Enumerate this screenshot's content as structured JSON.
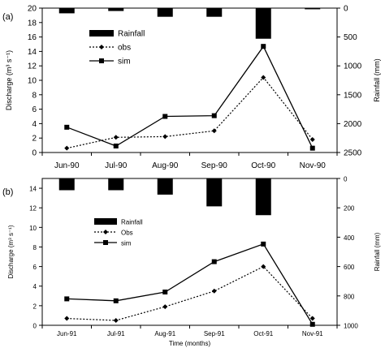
{
  "chart_data": [
    {
      "type": "line",
      "panel_label": "(a)",
      "categories": [
        "Jun-90",
        "Jul-90",
        "Aug-90",
        "Sep-90",
        "Oct-90",
        "Nov-90"
      ],
      "ylabel": "Discharge (m³ s⁻¹)",
      "y2label": "Rainfall (mm)",
      "ylim": [
        0,
        20
      ],
      "yticks": [
        0,
        2,
        4,
        6,
        8,
        10,
        12,
        14,
        16,
        18,
        20
      ],
      "y2lim": [
        0,
        2500
      ],
      "y2ticks": [
        0,
        500,
        1000,
        1500,
        2000,
        2500
      ],
      "y2_inverted": true,
      "series": [
        {
          "name": "obs",
          "kind": "line",
          "style": "dotted",
          "marker": "diamond",
          "values": [
            0.6,
            2.1,
            2.2,
            3.0,
            10.4,
            1.8
          ]
        },
        {
          "name": "sim",
          "kind": "line",
          "style": "solid",
          "marker": "square",
          "values": [
            3.5,
            0.9,
            5.0,
            5.1,
            14.7,
            0.6
          ]
        },
        {
          "name": "Rainfall",
          "kind": "bar",
          "axis": "right",
          "values": [
            90,
            50,
            150,
            150,
            530,
            20
          ]
        }
      ],
      "legend": {
        "placement": "top-left",
        "items": [
          "Rainfall",
          "obs",
          "sim"
        ]
      },
      "grid": false
    },
    {
      "type": "line",
      "panel_label": "(b)",
      "categories": [
        "Jun-91",
        "Jul-91",
        "Aug-91",
        "Sep-91",
        "Oct-91",
        "Nov-91"
      ],
      "xlabel": "Time (months)",
      "ylabel": "Discharge (m³ s⁻¹)",
      "y2label": "Rainfall (mm)",
      "ylim": [
        0,
        15
      ],
      "yticks": [
        0,
        2,
        4,
        6,
        8,
        10,
        12,
        14
      ],
      "y2lim": [
        0,
        1000
      ],
      "y2ticks": [
        0,
        200,
        400,
        600,
        800,
        1000
      ],
      "y2_inverted": true,
      "series": [
        {
          "name": "Obs",
          "kind": "line",
          "style": "dotted",
          "marker": "diamond",
          "values": [
            0.7,
            0.5,
            1.9,
            3.5,
            6.0,
            0.7
          ]
        },
        {
          "name": "sim",
          "kind": "line",
          "style": "solid",
          "marker": "square",
          "values": [
            2.7,
            2.5,
            3.4,
            6.5,
            8.3,
            0.1
          ]
        },
        {
          "name": "Rainfall",
          "kind": "bar",
          "axis": "right",
          "values": [
            80,
            80,
            110,
            190,
            250,
            0
          ]
        }
      ],
      "legend": {
        "placement": "top-left",
        "items": [
          "Rainfall",
          "Obs",
          "sim"
        ]
      },
      "grid": false
    }
  ]
}
